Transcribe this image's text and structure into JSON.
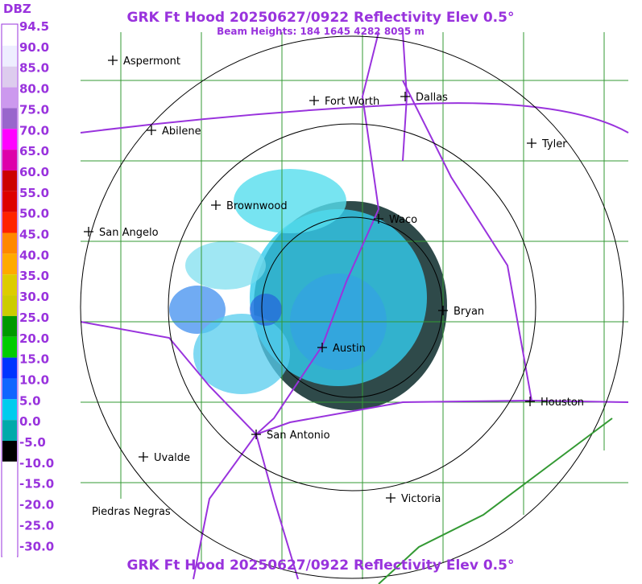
{
  "header": {
    "title": "GRK Ft Hood 20250627/0922 Reflectivity Elev 0.5°",
    "subtitle": "Beam Heights: 184 1645 4282 8095 m",
    "footer": "GRK Ft Hood 20250627/0922 Reflectivity Elev 0.5°"
  },
  "legend": {
    "unit": "DBZ",
    "labels": [
      "94.5",
      "90.0",
      "85.0",
      "80.0",
      "75.0",
      "70.0",
      "65.0",
      "60.0",
      "55.0",
      "50.0",
      "45.0",
      "40.0",
      "35.0",
      "30.0",
      "25.0",
      "20.0",
      "15.0",
      "10.0",
      "5.0",
      "0.0",
      "-5.0",
      "-10.0",
      "-15.0",
      "-20.0",
      "-25.0",
      "-30.0"
    ]
  },
  "cities": [
    "Aspermont",
    "Fort Worth",
    "Dallas",
    "Abilene",
    "Tyler",
    "Brownwood",
    "Waco",
    "San Angelo",
    "Bryan",
    "Austin",
    "Houston",
    "San Antonio",
    "Uvalde",
    "Victoria",
    "Piedras Negras"
  ]
}
